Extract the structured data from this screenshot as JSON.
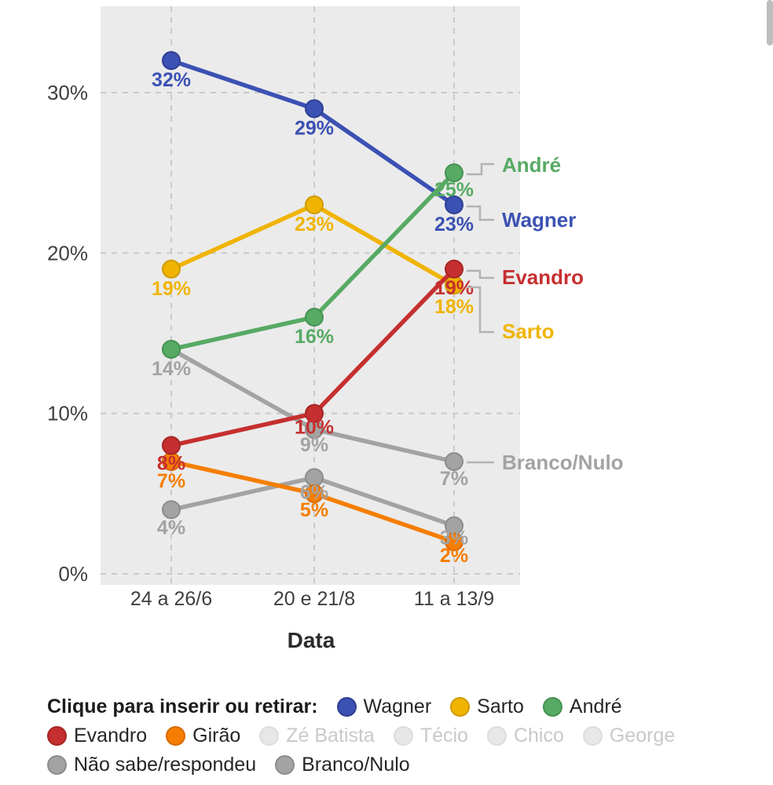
{
  "chart_data": {
    "type": "line",
    "xlabel": "Data",
    "x_categories": [
      "24 a 26/6",
      "20 e 21/8",
      "11 a 13/9"
    ],
    "yticks": [
      "0%",
      "10%",
      "20%",
      "30%"
    ],
    "ylim": [
      0,
      34
    ],
    "grid": true,
    "plot_background": "#ebebeb",
    "series": [
      {
        "name": "Não sabe/respondeu",
        "color": "#a3a3a3",
        "border": "#8c8c8c",
        "values": [
          4,
          6,
          3
        ],
        "labels": [
          "4%",
          "6%",
          "3%"
        ]
      },
      {
        "name": "Branco/Nulo",
        "color": "#a3a3a3",
        "border": "#8c8c8c",
        "values": [
          14,
          9,
          7
        ],
        "labels": [
          "14%",
          "9%",
          "7%"
        ]
      },
      {
        "name": "Girão",
        "color": "#f57e00",
        "border": "#d96a00",
        "values": [
          7,
          5,
          2
        ],
        "labels": [
          "7%",
          "5%",
          "2%"
        ]
      },
      {
        "name": "Sarto",
        "color": "#f0b400",
        "border": "#cf9a00",
        "values": [
          19,
          23,
          18
        ],
        "labels": [
          "19%",
          "23%",
          "18%"
        ]
      },
      {
        "name": "Evandro",
        "color": "#c62f2f",
        "border": "#a62525",
        "values": [
          8,
          10,
          19
        ],
        "labels": [
          "8%",
          "10%",
          "19%"
        ]
      },
      {
        "name": "Wagner",
        "color": "#3b51b3",
        "border": "#2e4092",
        "values": [
          32,
          29,
          23
        ],
        "labels": [
          "32%",
          "29%",
          "23%"
        ]
      },
      {
        "name": "André",
        "color": "#57aa64",
        "border": "#459253",
        "values": [
          14,
          16,
          25
        ],
        "labels": [
          null,
          "16%",
          "25%"
        ]
      }
    ],
    "end_labels": [
      {
        "text": "André",
        "color": "#57aa64"
      },
      {
        "text": "Wagner",
        "color": "#3b51b3"
      },
      {
        "text": "Evandro",
        "color": "#c62f2f"
      },
      {
        "text": "Sarto",
        "color": "#f0b400"
      },
      {
        "text": "Branco/Nulo",
        "color": "#a3a3a3"
      }
    ]
  },
  "legend": {
    "title": "Clique para inserir ou retirar:",
    "rows": [
      [
        {
          "label": "Wagner",
          "color": "#3b51b3",
          "border": "#2e4092",
          "active": true
        },
        {
          "label": "Sarto",
          "color": "#f0b400",
          "border": "#cf9a00",
          "active": true
        },
        {
          "label": "André",
          "color": "#57aa64",
          "border": "#459253",
          "active": true
        }
      ],
      [
        {
          "label": "Evandro",
          "color": "#c62f2f",
          "border": "#a62525",
          "active": true
        },
        {
          "label": "Girão",
          "color": "#f57e00",
          "border": "#d96a00",
          "active": true
        },
        {
          "label": "Zé Batista",
          "color": "#e7e7e7",
          "border": "#dddddd",
          "active": false
        },
        {
          "label": "Técio",
          "color": "#e7e7e7",
          "border": "#dddddd",
          "active": false
        },
        {
          "label": "Chico",
          "color": "#e7e7e7",
          "border": "#dddddd",
          "active": false
        },
        {
          "label": "George",
          "color": "#e7e7e7",
          "border": "#dddddd",
          "active": false
        }
      ],
      [
        {
          "label": "Não sabe/respondeu",
          "color": "#a3a3a3",
          "border": "#8c8c8c",
          "active": true
        },
        {
          "label": "Branco/Nulo",
          "color": "#a3a3a3",
          "border": "#8c8c8c",
          "active": true
        }
      ]
    ]
  }
}
